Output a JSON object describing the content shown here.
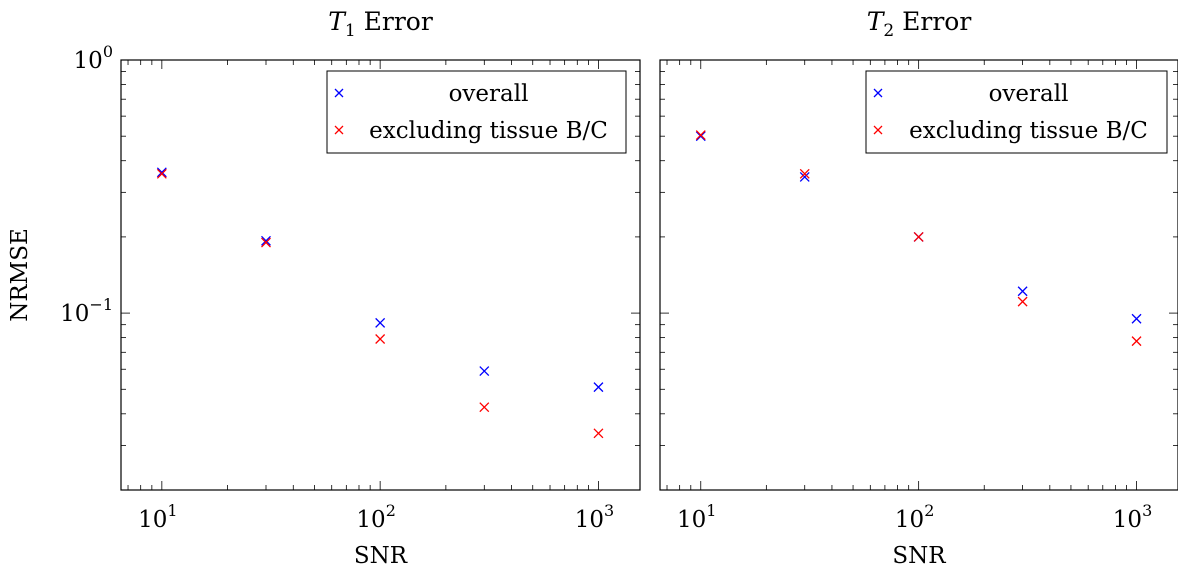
{
  "chart_data": [
    {
      "type": "scatter",
      "title": "T1 Error",
      "title_parts": {
        "symbol": "T",
        "subscript": "1",
        "rest": " Error"
      },
      "xlabel": "SNR",
      "ylabel": "NRMSE",
      "xscale": "log",
      "yscale": "log",
      "xlim": [
        6.5,
        1550
      ],
      "ylim": [
        0.02,
        1.0
      ],
      "x_ticks": [
        {
          "base": "10",
          "exp": "1",
          "value": 10
        },
        {
          "base": "10",
          "exp": "2",
          "value": 100
        },
        {
          "base": "10",
          "exp": "3",
          "value": 1000
        }
      ],
      "y_ticks": [
        {
          "base": "10",
          "exp": "0",
          "value": 1.0
        },
        {
          "base": "10",
          "exp": "−1",
          "value": 0.1
        }
      ],
      "grid": false,
      "legend_position": "top-right",
      "series": [
        {
          "name": "overall",
          "color": "#0000ff",
          "marker": "x",
          "x": [
            10,
            30,
            100,
            300,
            1000
          ],
          "y": [
            0.36,
            0.193,
            0.0915,
            0.059,
            0.051
          ]
        },
        {
          "name": "excluding tissue B/C",
          "color": "#ff0000",
          "marker": "x",
          "x": [
            10,
            30,
            100,
            300,
            1000
          ],
          "y": [
            0.355,
            0.19,
            0.079,
            0.0425,
            0.0335
          ]
        }
      ]
    },
    {
      "type": "scatter",
      "title": "T2 Error",
      "title_parts": {
        "symbol": "T",
        "subscript": "2",
        "rest": " Error"
      },
      "xlabel": "SNR",
      "ylabel": "",
      "xscale": "log",
      "yscale": "log",
      "xlim": [
        6.5,
        1550
      ],
      "ylim": [
        0.02,
        1.0
      ],
      "x_ticks": [
        {
          "base": "10",
          "exp": "1",
          "value": 10
        },
        {
          "base": "10",
          "exp": "2",
          "value": 100
        },
        {
          "base": "10",
          "exp": "3",
          "value": 1000
        }
      ],
      "y_ticks": [],
      "grid": false,
      "legend_position": "top-right",
      "series": [
        {
          "name": "overall",
          "color": "#0000ff",
          "marker": "x",
          "x": [
            10,
            30,
            100,
            300,
            1000
          ],
          "y": [
            0.5,
            0.345,
            0.2,
            0.122,
            0.095
          ]
        },
        {
          "name": "excluding tissue B/C",
          "color": "#ff0000",
          "marker": "x",
          "x": [
            10,
            30,
            100,
            300,
            1000
          ],
          "y": [
            0.505,
            0.355,
            0.2,
            0.111,
            0.0775
          ]
        }
      ]
    }
  ]
}
